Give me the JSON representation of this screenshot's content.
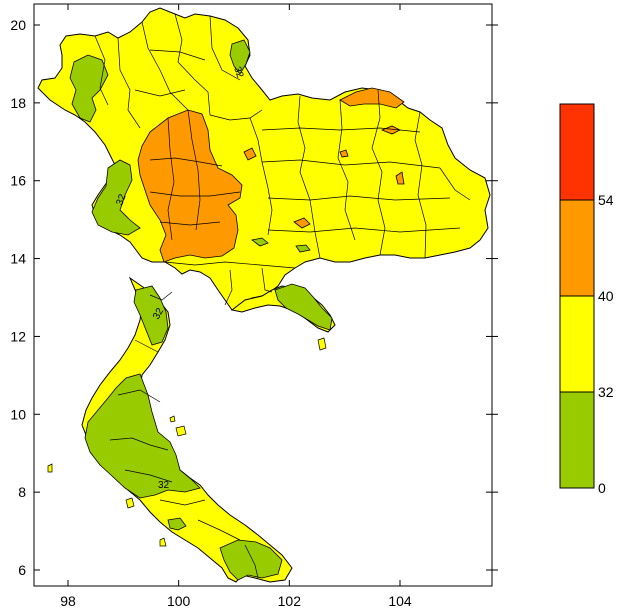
{
  "map": {
    "x_ticks": [
      "98",
      "100",
      "102",
      "104"
    ],
    "y_ticks": [
      "6",
      "8",
      "10",
      "12",
      "14",
      "16",
      "18",
      "20"
    ],
    "contour_labels": [
      "32",
      "32",
      "32",
      "32"
    ],
    "colors": {
      "green": "#99cc00",
      "yellow": "#ffff00",
      "orange": "#ff9900",
      "red": "#ff3300",
      "border": "#000000"
    }
  },
  "legend": {
    "labels": [
      "54",
      "40",
      "32",
      "0"
    ],
    "bands": [
      {
        "range": ">54",
        "color": "#ff3300"
      },
      {
        "range": "40-54",
        "color": "#ff9900"
      },
      {
        "range": "32-40",
        "color": "#ffff00"
      },
      {
        "range": "0-32",
        "color": "#99cc00"
      }
    ]
  }
}
